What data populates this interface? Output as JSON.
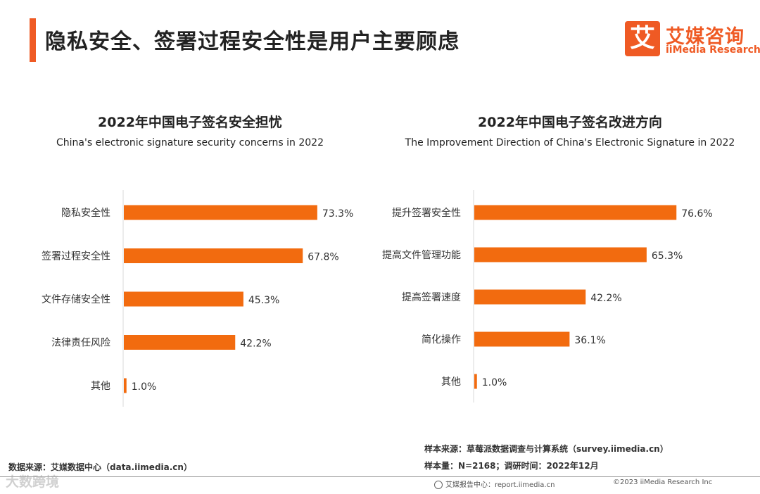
{
  "header": {
    "title": "隐私安全、签署过程安全性是用户主要顾虑",
    "logo_mark": "艾",
    "logo_cn": "艾媒咨询",
    "logo_en": "iiMedia Research"
  },
  "colors": {
    "accent": "#ef5a24",
    "bar": "#f26b0f",
    "axis": "#d9d9d9",
    "text": "#333333"
  },
  "chart_data": [
    {
      "type": "bar",
      "orientation": "horizontal",
      "title": "2022年中国电子签名安全担忧",
      "subtitle": "China's electronic signature security concerns in 2022",
      "categories": [
        "隐私安全性",
        "签署过程安全性",
        "文件存储安全性",
        "法律责任风险",
        "其他"
      ],
      "values": [
        73.3,
        67.8,
        45.3,
        42.2,
        1.0
      ],
      "value_labels": [
        "73.3%",
        "67.8%",
        "45.3%",
        "42.2%",
        "1.0%"
      ],
      "unit": "%",
      "xlim": [
        0,
        100
      ],
      "grid": false
    },
    {
      "type": "bar",
      "orientation": "horizontal",
      "title": "2022年中国电子签名改进方向",
      "subtitle": "The Improvement Direction of China's Electronic Signature in 2022",
      "categories": [
        "提升签署安全性",
        "提高文件管理功能",
        "提高签署速度",
        "简化操作",
        "其他"
      ],
      "values": [
        76.6,
        65.3,
        42.2,
        36.1,
        1.0
      ],
      "value_labels": [
        "76.6%",
        "65.3%",
        "42.2%",
        "36.1%",
        "1.0%"
      ],
      "unit": "%",
      "xlim": [
        0,
        100
      ],
      "grid": false
    }
  ],
  "footer": {
    "source_left": "数据来源：艾媒数据中心（data.iimedia.cn）",
    "sample_source": "样本来源：草莓派数据调查与计算系统（survey.iimedia.cn）",
    "sample_size": "样本量：N=2168；调研时间：2022年12月",
    "report_center": "艾媒报告中心：report.iimedia.cn",
    "copyright": "©2023  iiMedia Research  Inc",
    "watermark": "大数跨境"
  }
}
